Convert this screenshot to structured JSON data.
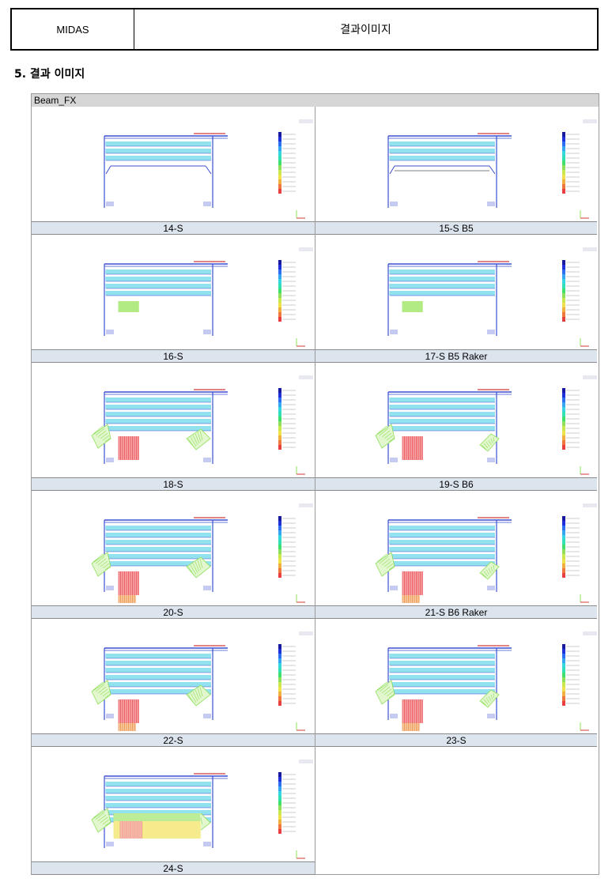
{
  "header": {
    "left": "MIDAS",
    "right": "결과이미지"
  },
  "section_title": "5. 결과 이미지",
  "sheet_title": "Beam_FX",
  "panels": [
    {
      "caption": "14-S",
      "struts": 0,
      "raker": false,
      "bottom": "none",
      "redcols": 0,
      "slab": false,
      "variant": 0
    },
    {
      "caption": "15-S B5",
      "struts": 0,
      "raker": false,
      "bottom": "slab",
      "redcols": 0,
      "slab": true,
      "variant": 0
    },
    {
      "caption": "16-S",
      "struts": 1,
      "raker": false,
      "bottom": "green",
      "redcols": 0,
      "slab": false,
      "variant": 1
    },
    {
      "caption": "17-S B5 Raker",
      "struts": 1,
      "raker": true,
      "bottom": "green",
      "redcols": 0,
      "slab": true,
      "variant": 1
    },
    {
      "caption": "18-S",
      "struts": 2,
      "raker": false,
      "bottom": "red",
      "redcols": 1,
      "slab": false,
      "variant": 2
    },
    {
      "caption": "19-S B6",
      "struts": 2,
      "raker": true,
      "bottom": "red",
      "redcols": 1,
      "slab": true,
      "variant": 2
    },
    {
      "caption": "20-S",
      "struts": 3,
      "raker": false,
      "bottom": "red",
      "redcols": 1,
      "slab": false,
      "variant": 3
    },
    {
      "caption": "21-S B6 Raker",
      "struts": 3,
      "raker": true,
      "bottom": "red",
      "redcols": 1,
      "slab": true,
      "variant": 3
    },
    {
      "caption": "22-S",
      "struts": 4,
      "raker": false,
      "bottom": "red",
      "redcols": 1,
      "slab": false,
      "variant": 4
    },
    {
      "caption": "23-S",
      "struts": 4,
      "raker": true,
      "bottom": "red",
      "redcols": 1,
      "slab": true,
      "variant": 4
    },
    {
      "caption": "24-S",
      "struts": 5,
      "raker": false,
      "bottom": "yellow",
      "redcols": 1,
      "slab": false,
      "variant": 5
    },
    {
      "caption": "",
      "empty": true
    }
  ],
  "colors": {
    "blue": "#3a4fd0",
    "cyan": "#2ec4e0",
    "green": "#8ee05a",
    "red": "#e8454a",
    "yellow": "#f2e05a",
    "caption_bg": "#dce4ee"
  }
}
